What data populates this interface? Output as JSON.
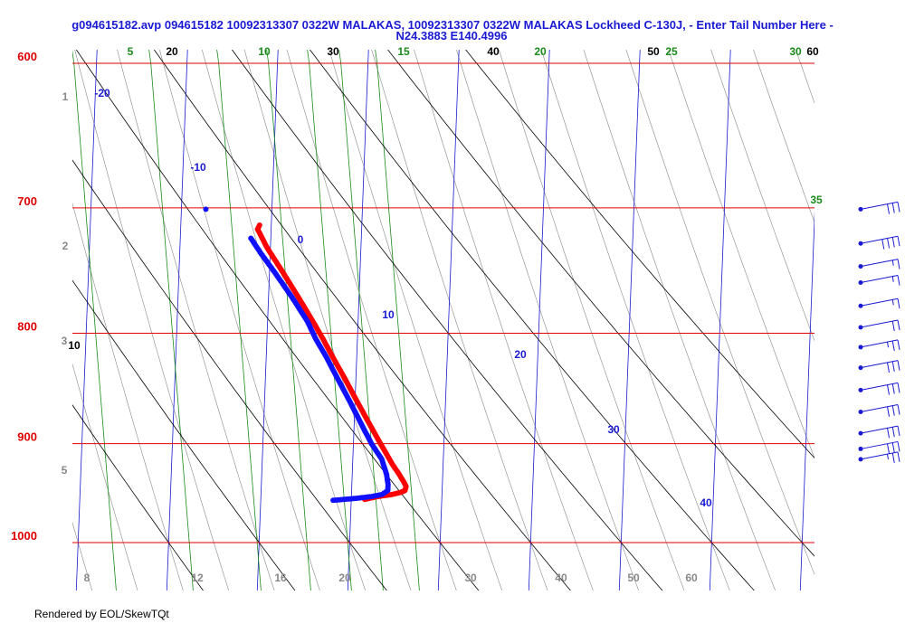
{
  "title_line1": "g094615182.avp 094615182 10092313307 0322W MALAKAS, 10092313307 0322W MALAKAS Lockheed C-130J, - Enter Tail Number Here -",
  "title_line2": "N24.3883 E140.4996",
  "footer": "Rendered by EOL/SkewTQt",
  "colors": {
    "pressure": "#e00000",
    "dry_adiabat": "#000000",
    "mixing_ratio": "#1a8a1a",
    "isotherm": "#1a1ad4",
    "moist_adiabat": "#888888",
    "temperature": "#ff0000",
    "dewpoint": "#1010ff",
    "wind": "#1a1ad4"
  },
  "chart_data": {
    "type": "scatter",
    "axes": {
      "pressure_range_hPa": [
        1050,
        600
      ],
      "pressure_scale": "log",
      "x_label_type": "skewed temperature (°C)"
    },
    "pressure_levels": [
      {
        "value": 600,
        "label": "600"
      },
      {
        "value": 700,
        "label": "700"
      },
      {
        "value": 800,
        "label": "800"
      },
      {
        "value": 900,
        "label": "900"
      },
      {
        "value": 1000,
        "label": "1000"
      }
    ],
    "dry_adiabat_labels": [
      "10",
      "20",
      "30",
      "40",
      "50",
      "60"
    ],
    "mixing_ratio_labels": [
      "5",
      "10",
      "15",
      "20",
      "25",
      "30",
      "35"
    ],
    "isotherm_labels": [
      "-20",
      "-10",
      "0",
      "10",
      "20",
      "30",
      "40"
    ],
    "moist_adiabat_labels": [
      "8",
      "12",
      "16",
      "20",
      "30",
      "40",
      "50",
      "60"
    ],
    "height_labels": [
      "1",
      "2",
      "3",
      "5"
    ],
    "series": [
      {
        "name": "temperature",
        "points": [
          {
            "p": 955,
            "t": 21.5
          },
          {
            "p": 952,
            "t": 23.0
          },
          {
            "p": 950,
            "t": 24.5
          },
          {
            "p": 948,
            "t": 25.4
          },
          {
            "p": 946,
            "t": 25.9
          },
          {
            "p": 942,
            "t": 26.0
          },
          {
            "p": 937,
            "t": 25.7
          },
          {
            "p": 930,
            "t": 25.2
          },
          {
            "p": 920,
            "t": 24.4
          },
          {
            "p": 900,
            "t": 23.0
          },
          {
            "p": 880,
            "t": 21.6
          },
          {
            "p": 860,
            "t": 20.2
          },
          {
            "p": 840,
            "t": 18.8
          },
          {
            "p": 820,
            "t": 17.3
          },
          {
            "p": 805,
            "t": 16.2
          },
          {
            "p": 790,
            "t": 15.0
          },
          {
            "p": 770,
            "t": 13.3
          },
          {
            "p": 750,
            "t": 11.5
          },
          {
            "p": 730,
            "t": 9.6
          },
          {
            "p": 716,
            "t": 8.5
          },
          {
            "p": 713,
            "t": 8.7
          }
        ]
      },
      {
        "name": "dewpoint",
        "points": [
          {
            "p": 956,
            "t": 18.0
          },
          {
            "p": 954,
            "t": 20.5
          },
          {
            "p": 952,
            "t": 22.3
          },
          {
            "p": 950,
            "t": 23.4
          },
          {
            "p": 946,
            "t": 24.0
          },
          {
            "p": 940,
            "t": 24.0
          },
          {
            "p": 930,
            "t": 23.8
          },
          {
            "p": 915,
            "t": 23.2
          },
          {
            "p": 900,
            "t": 22.0
          },
          {
            "p": 880,
            "t": 20.7
          },
          {
            "p": 860,
            "t": 19.4
          },
          {
            "p": 840,
            "t": 18.0
          },
          {
            "p": 820,
            "t": 16.6
          },
          {
            "p": 805,
            "t": 15.4
          },
          {
            "p": 790,
            "t": 14.4
          },
          {
            "p": 770,
            "t": 12.6
          },
          {
            "p": 750,
            "t": 10.6
          },
          {
            "p": 735,
            "t": 9.0
          },
          {
            "p": 723,
            "t": 7.8
          }
        ]
      },
      {
        "name": "dewpoint_outlier",
        "points": [
          {
            "p": 701,
            "t": 2.7
          }
        ]
      }
    ],
    "wind_barbs": [
      {
        "p": 701,
        "barbs": 3
      },
      {
        "p": 727,
        "barbs": 4
      },
      {
        "p": 745,
        "barbs": 1.5
      },
      {
        "p": 758,
        "barbs": 1.5
      },
      {
        "p": 777,
        "barbs": 1.5
      },
      {
        "p": 795,
        "barbs": 2
      },
      {
        "p": 812,
        "barbs": 2.5
      },
      {
        "p": 830,
        "barbs": 3
      },
      {
        "p": 850,
        "barbs": 3
      },
      {
        "p": 870,
        "barbs": 3
      },
      {
        "p": 890,
        "barbs": 3
      },
      {
        "p": 905,
        "barbs": 3
      },
      {
        "p": 915,
        "barbs": 2.5
      }
    ]
  }
}
